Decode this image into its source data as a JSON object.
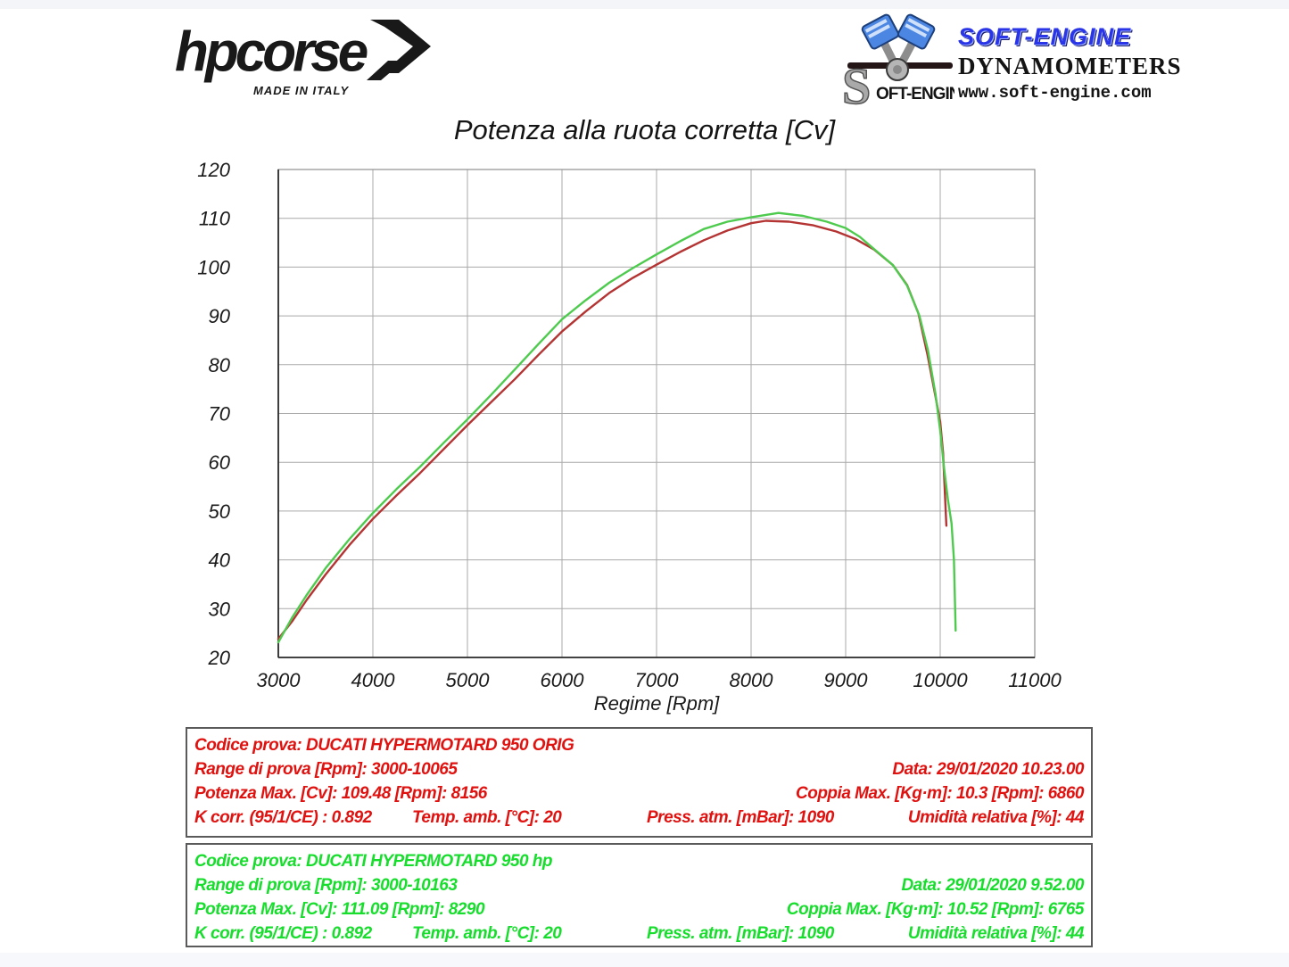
{
  "header": {
    "hpcorse": {
      "name": "hpcorse",
      "tagline": "MADE IN ITALY"
    },
    "softengine": {
      "script_s": "S",
      "script_rest": "OFT-ENGINE",
      "brand": "SOFT-ENGINE",
      "dynamometers": "DYNAMOMETERS",
      "url": "www.soft-engine.com"
    }
  },
  "chart_data": {
    "type": "line",
    "title": "Potenza alla ruota corretta [Cv]",
    "xlabel": "Regime [Rpm]",
    "ylabel": "",
    "xlim": [
      3000,
      11000
    ],
    "ylim": [
      20,
      120
    ],
    "x_ticks": [
      3000,
      4000,
      5000,
      6000,
      7000,
      8000,
      9000,
      10000,
      11000
    ],
    "y_ticks": [
      20,
      30,
      40,
      50,
      60,
      70,
      80,
      90,
      100,
      110,
      120
    ],
    "grid": true,
    "legend_position": "none",
    "grid_color": "#a9a9a9",
    "series": [
      {
        "name": "DUCATI HYPERMOTARD 950 ORIG",
        "color": "#b43433",
        "points": [
          [
            3000,
            23.8
          ],
          [
            3150,
            27.5
          ],
          [
            3300,
            31.8
          ],
          [
            3500,
            37.0
          ],
          [
            3750,
            43.0
          ],
          [
            4000,
            48.4
          ],
          [
            4250,
            53.2
          ],
          [
            4500,
            57.8
          ],
          [
            4750,
            62.7
          ],
          [
            5000,
            67.6
          ],
          [
            5250,
            72.3
          ],
          [
            5500,
            77.0
          ],
          [
            5750,
            82.0
          ],
          [
            6000,
            86.8
          ],
          [
            6250,
            90.9
          ],
          [
            6500,
            94.7
          ],
          [
            6750,
            97.8
          ],
          [
            7000,
            100.5
          ],
          [
            7250,
            103.1
          ],
          [
            7500,
            105.5
          ],
          [
            7750,
            107.5
          ],
          [
            8000,
            109.0
          ],
          [
            8156,
            109.48
          ],
          [
            8400,
            109.3
          ],
          [
            8650,
            108.6
          ],
          [
            8900,
            107.3
          ],
          [
            9100,
            105.8
          ],
          [
            9300,
            103.6
          ],
          [
            9500,
            100.4
          ],
          [
            9650,
            96.3
          ],
          [
            9770,
            90.5
          ],
          [
            9868,
            81.8
          ],
          [
            9950,
            73.5
          ],
          [
            10000,
            68.3
          ],
          [
            10030,
            62.0
          ],
          [
            10065,
            47.0
          ]
        ]
      },
      {
        "name": "DUCATI HYPERMOTARD 950 hp",
        "color": "#4ecb4e",
        "points": [
          [
            3000,
            23.1
          ],
          [
            3150,
            28.3
          ],
          [
            3300,
            32.8
          ],
          [
            3500,
            38.3
          ],
          [
            3750,
            44.2
          ],
          [
            4000,
            49.6
          ],
          [
            4250,
            54.5
          ],
          [
            4500,
            59.1
          ],
          [
            4750,
            64.0
          ],
          [
            5000,
            68.8
          ],
          [
            5250,
            73.8
          ],
          [
            5500,
            79.0
          ],
          [
            5750,
            84.2
          ],
          [
            6000,
            89.3
          ],
          [
            6250,
            93.2
          ],
          [
            6500,
            96.8
          ],
          [
            6750,
            99.8
          ],
          [
            7000,
            102.6
          ],
          [
            7250,
            105.3
          ],
          [
            7500,
            107.8
          ],
          [
            7750,
            109.3
          ],
          [
            8000,
            110.2
          ],
          [
            8290,
            111.09
          ],
          [
            8550,
            110.5
          ],
          [
            8800,
            109.3
          ],
          [
            9000,
            108.0
          ],
          [
            9150,
            106.2
          ],
          [
            9300,
            103.7
          ],
          [
            9500,
            100.4
          ],
          [
            9650,
            96.2
          ],
          [
            9780,
            90.0
          ],
          [
            9870,
            83.0
          ],
          [
            9950,
            74.0
          ],
          [
            10000,
            66.5
          ],
          [
            10040,
            59.0
          ],
          [
            10080,
            52.5
          ],
          [
            10120,
            47.5
          ],
          [
            10145,
            40.0
          ],
          [
            10163,
            25.5
          ]
        ]
      }
    ]
  },
  "boxes": [
    {
      "text_color": "#e01210",
      "codice": "Codice prova: DUCATI HYPERMOTARD 950 ORIG",
      "range": "Range di prova [Rpm]: 3000-10065",
      "data": "Data: 29/01/2020  10.23.00",
      "potenza": "Potenza Max. [Cv]: 109.48   [Rpm]: 8156",
      "coppia": "Coppia Max. [Kg·m]: 10.3   [Rpm]: 6860",
      "kcorr": "K corr. (95/1/CE) : 0.892",
      "temp": "Temp. amb. [°C]: 20",
      "press": "Press. atm. [mBar]: 1090",
      "umidita": "Umidità relativa [%]: 44"
    },
    {
      "text_color": "#17dd2c",
      "codice": "Codice prova: DUCATI HYPERMOTARD 950 hp",
      "range": "Range di prova [Rpm]: 3000-10163",
      "data": "Data: 29/01/2020  9.52.00",
      "potenza": "Potenza Max. [Cv]: 111.09   [Rpm]: 8290",
      "coppia": "Coppia Max. [Kg·m]: 10.52   [Rpm]: 6765",
      "kcorr": "K corr. (95/1/CE) : 0.892",
      "temp": "Temp. amb. [°C]: 20",
      "press": "Press. atm. [mBar]: 1090",
      "umidita": "Umidità relativa [%]: 44"
    }
  ]
}
